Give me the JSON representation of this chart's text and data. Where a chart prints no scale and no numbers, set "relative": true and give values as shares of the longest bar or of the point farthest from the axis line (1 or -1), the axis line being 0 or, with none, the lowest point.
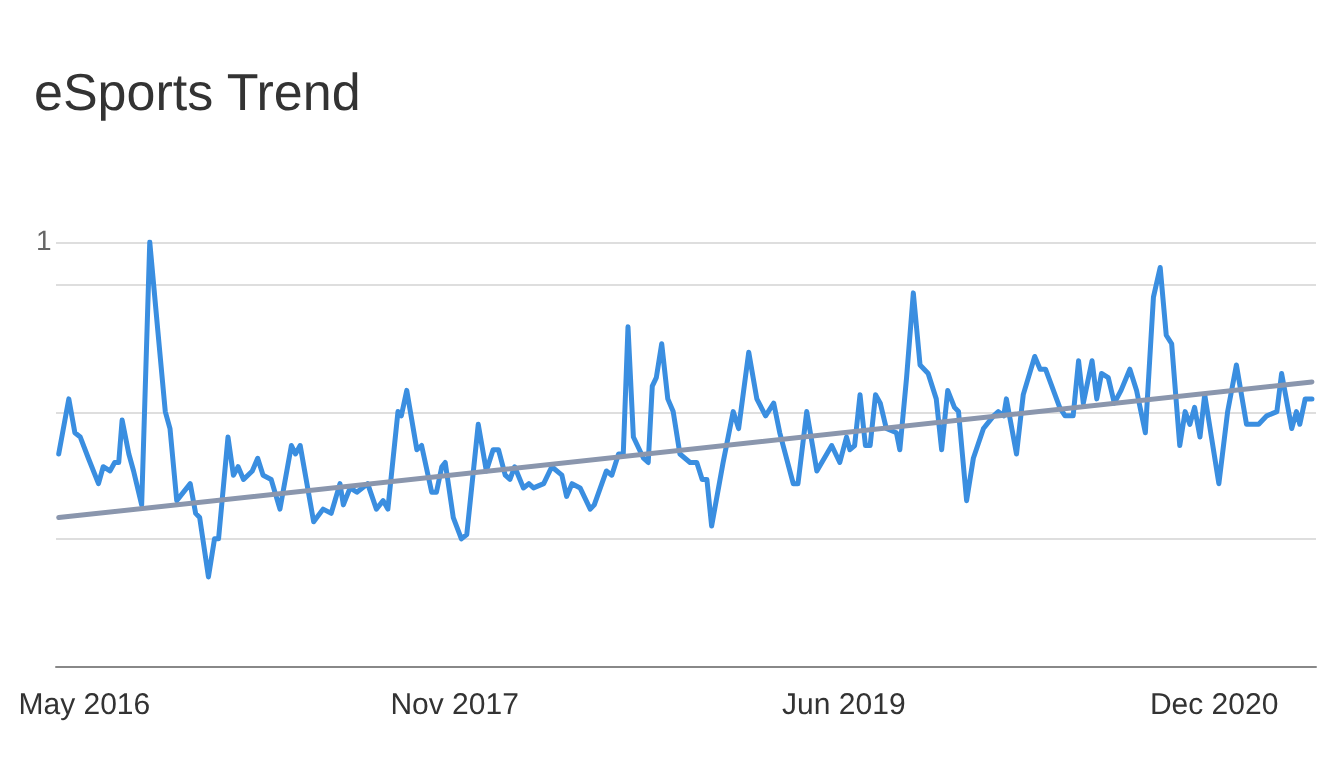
{
  "chart_data": {
    "type": "line",
    "title": "eSports Trend",
    "relative": true,
    "grid": "y",
    "xlim": [
      "2016-03-20",
      "2021-05-01"
    ],
    "xticks": [
      {
        "value": "2016-05-01",
        "label": "May 2016"
      },
      {
        "value": "2017-11-01",
        "label": "Nov 2017"
      },
      {
        "value": "2019-06-01",
        "label": "Jun 2019"
      },
      {
        "value": "2020-12-01",
        "label": "Dec 2020"
      }
    ],
    "annotations": [
      "1"
    ],
    "series": [
      {
        "color": "#3a8ee0",
        "x": [
          "2016-03-24",
          "2016-04-08",
          "2016-04-17",
          "2016-04-25",
          "2016-05-07",
          "2016-05-22",
          "2016-05-29",
          "2016-06-08",
          "2016-06-15",
          "2016-06-21",
          "2016-06-26",
          "2016-07-06",
          "2016-07-13",
          "2016-07-25",
          "2016-08-06",
          "2016-08-18",
          "2016-08-29",
          "2016-09-05",
          "2016-09-15",
          "2016-10-05",
          "2016-10-13",
          "2016-10-19",
          "2016-11-01",
          "2016-11-10",
          "2016-11-16",
          "2016-11-30",
          "2016-12-08",
          "2016-12-15",
          "2016-12-23",
          "2017-01-05",
          "2017-01-13",
          "2017-01-21",
          "2017-02-02",
          "2017-02-15",
          "2017-03-04",
          "2017-03-10",
          "2017-03-17",
          "2017-04-06",
          "2017-04-20",
          "2017-05-02",
          "2017-05-15",
          "2017-05-20",
          "2017-05-30",
          "2017-06-09",
          "2017-06-25",
          "2017-07-08",
          "2017-07-18",
          "2017-07-25",
          "2017-08-09",
          "2017-08-14",
          "2017-08-22",
          "2017-09-06",
          "2017-09-13",
          "2017-09-28",
          "2017-10-05",
          "2017-10-13",
          "2017-10-18",
          "2017-10-30",
          "2017-11-11",
          "2017-11-19",
          "2017-12-06",
          "2017-12-18",
          "2017-12-28",
          "2018-01-05",
          "2018-01-15",
          "2018-01-22",
          "2018-01-29",
          "2018-02-11",
          "2018-02-19",
          "2018-02-26",
          "2018-03-13",
          "2018-03-25",
          "2018-04-09",
          "2018-04-16",
          "2018-04-24",
          "2018-05-06",
          "2018-05-21",
          "2018-05-27",
          "2018-06-14",
          "2018-06-22",
          "2018-07-02",
          "2018-07-09",
          "2018-07-16",
          "2018-07-24",
          "2018-08-08",
          "2018-08-15",
          "2018-08-21",
          "2018-08-27",
          "2018-09-04",
          "2018-09-13",
          "2018-09-21",
          "2018-10-01",
          "2018-10-16",
          "2018-10-26",
          "2018-11-03",
          "2018-11-10",
          "2018-11-17",
          "2018-12-04",
          "2018-12-19",
          "2018-12-27",
          "2019-01-11",
          "2019-01-23",
          "2019-02-05",
          "2019-02-17",
          "2019-02-26",
          "2019-03-18",
          "2019-03-25",
          "2019-04-07",
          "2019-04-22",
          "2019-05-14",
          "2019-05-26",
          "2019-06-05",
          "2019-06-10",
          "2019-06-17",
          "2019-06-25",
          "2019-07-03",
          "2019-07-10",
          "2019-07-18",
          "2019-07-25",
          "2019-08-03",
          "2019-08-18",
          "2019-08-23",
          "2019-09-02",
          "2019-09-12",
          "2019-09-22",
          "2019-10-04",
          "2019-10-16",
          "2019-10-24",
          "2019-11-02",
          "2019-11-12",
          "2019-11-18",
          "2019-11-30",
          "2019-12-10",
          "2019-12-25",
          "2020-01-09",
          "2020-01-16",
          "2020-01-24",
          "2020-01-28",
          "2020-02-12",
          "2020-02-22",
          "2020-03-10",
          "2020-03-18",
          "2020-03-26",
          "2020-04-16",
          "2020-04-24",
          "2020-05-06",
          "2020-05-14",
          "2020-05-21",
          "2020-06-03",
          "2020-06-10",
          "2020-06-17",
          "2020-06-27",
          "2020-07-06",
          "2020-07-16",
          "2020-07-29",
          "2020-08-08",
          "2020-08-21",
          "2020-09-02",
          "2020-09-12",
          "2020-09-21",
          "2020-09-29",
          "2020-10-11",
          "2020-10-19",
          "2020-10-26",
          "2020-11-02",
          "2020-11-10",
          "2020-11-17",
          "2020-11-27",
          "2020-12-08",
          "2020-12-21",
          "2021-01-03",
          "2021-01-18",
          "2021-01-30",
          "2021-02-05",
          "2021-02-17",
          "2021-03-04",
          "2021-03-11",
          "2021-03-18",
          "2021-03-26",
          "2021-04-02",
          "2021-04-07",
          "2021-04-15",
          "2021-04-25"
        ],
        "values": [
          0.5,
          0.63,
          0.55,
          0.54,
          0.49,
          0.43,
          0.47,
          0.46,
          0.48,
          0.48,
          0.58,
          0.5,
          0.46,
          0.38,
          1,
          0.79,
          0.6,
          0.56,
          0.39,
          0.43,
          0.36,
          0.35,
          0.21,
          0.3,
          0.3,
          0.54,
          0.45,
          0.47,
          0.44,
          0.46,
          0.49,
          0.45,
          0.44,
          0.37,
          0.52,
          0.5,
          0.52,
          0.34,
          0.37,
          0.36,
          0.43,
          0.38,
          0.42,
          0.41,
          0.43,
          0.37,
          0.39,
          0.37,
          0.6,
          0.59,
          0.65,
          0.51,
          0.52,
          0.41,
          0.41,
          0.47,
          0.48,
          0.35,
          0.3,
          0.31,
          0.57,
          0.46,
          0.51,
          0.51,
          0.45,
          0.44,
          0.47,
          0.42,
          0.43,
          0.42,
          0.43,
          0.47,
          0.45,
          0.4,
          0.43,
          0.42,
          0.37,
          0.38,
          0.46,
          0.45,
          0.5,
          0.5,
          0.8,
          0.54,
          0.49,
          0.48,
          0.66,
          0.68,
          0.76,
          0.63,
          0.6,
          0.5,
          0.48,
          0.48,
          0.44,
          0.44,
          0.33,
          0.48,
          0.6,
          0.56,
          0.74,
          0.63,
          0.59,
          0.62,
          0.55,
          0.43,
          0.43,
          0.6,
          0.46,
          0.52,
          0.48,
          0.54,
          0.51,
          0.52,
          0.64,
          0.52,
          0.52,
          0.64,
          0.62,
          0.56,
          0.55,
          0.51,
          0.68,
          0.88,
          0.71,
          0.69,
          0.63,
          0.51,
          0.65,
          0.61,
          0.6,
          0.39,
          0.49,
          0.56,
          0.59,
          0.6,
          0.59,
          0.63,
          0.5,
          0.64,
          0.73,
          0.7,
          0.7,
          0.61,
          0.59,
          0.59,
          0.72,
          0.62,
          0.72,
          0.63,
          0.69,
          0.68,
          0.62,
          0.65,
          0.7,
          0.65,
          0.55,
          0.87,
          0.94,
          0.78,
          0.76,
          0.52,
          0.6,
          0.57,
          0.61,
          0.54,
          0.64,
          0.54,
          0.43,
          0.6,
          0.71,
          0.57,
          0.57,
          0.57,
          0.59,
          0.6,
          0.69,
          0.63,
          0.56,
          0.6,
          0.57,
          0.63,
          0.63
        ]
      },
      {
        "color": "#8a96ad",
        "x": [
          "2016-03-24",
          "2021-04-25"
        ],
        "values": [
          0.35,
          0.67
        ]
      }
    ]
  }
}
